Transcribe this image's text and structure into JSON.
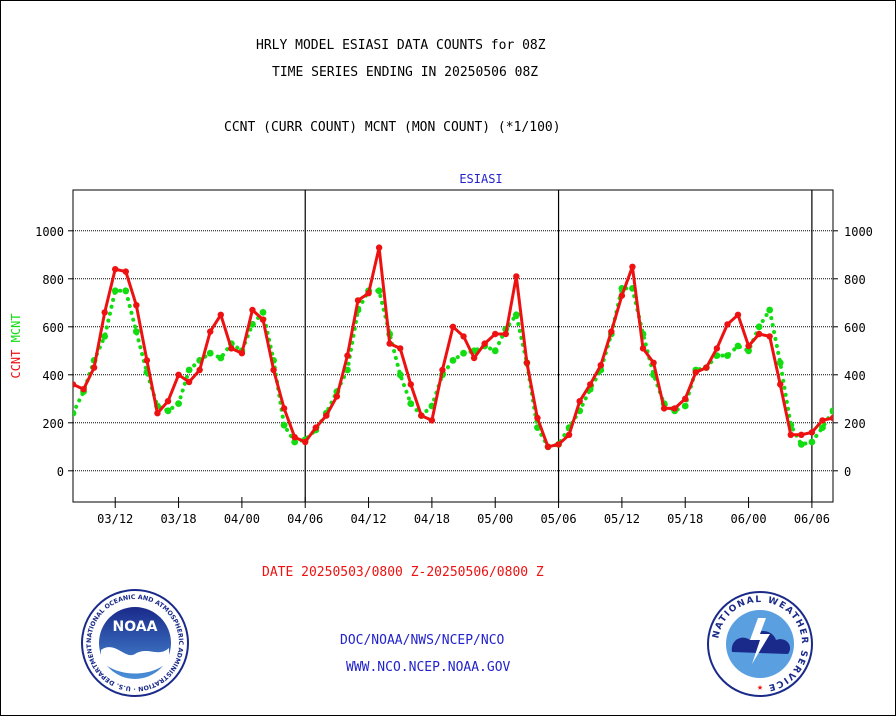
{
  "header": {
    "title_line1": "HRLY MODEL ESIASI DATA COUNTS for 08Z",
    "title_line2": "TIME SERIES ENDING IN 20250506 08Z",
    "subtitle": "CCNT (CURR COUNT) MCNT (MON COUNT) (*1/100)"
  },
  "footer": {
    "date_range": "DATE 20250503/0800 Z-20250506/0800 Z",
    "org_line": "DOC/NOAA/NWS/NCEP/NCO",
    "url_line": "WWW.NCO.NCEP.NOAA.GOV"
  },
  "logos": {
    "noaa_text": "NOAA",
    "noaa_ring": "NATIONAL OCEANIC AND ATMOSPHERIC ADMINISTRATION · U.S. DEPARTMENT OF COMMERCE",
    "nws_ring": "NATIONAL WEATHER SERVICE"
  },
  "colors": {
    "ccnt": "#ee1111",
    "mcnt": "#11dd11",
    "plot_title": "#2222cc",
    "footer_blue": "#2222cc",
    "footer_red": "#ee1111"
  },
  "chart_data": {
    "type": "line",
    "title": "ESIASI",
    "ylabel_ccnt": "CCNT",
    "ylabel_mcnt": "MCNT",
    "ylim": [
      -130,
      1170
    ],
    "yticks": [
      0,
      200,
      400,
      600,
      800,
      1000
    ],
    "x_start_hour": 8,
    "x_end_hour": 80,
    "x_ticks": [
      {
        "hour": 12,
        "label": "03/12"
      },
      {
        "hour": 18,
        "label": "03/18"
      },
      {
        "hour": 24,
        "label": "04/00"
      },
      {
        "hour": 30,
        "label": "04/06"
      },
      {
        "hour": 36,
        "label": "04/12"
      },
      {
        "hour": 42,
        "label": "04/18"
      },
      {
        "hour": 48,
        "label": "05/00"
      },
      {
        "hour": 54,
        "label": "05/06"
      },
      {
        "hour": 60,
        "label": "05/12"
      },
      {
        "hour": 66,
        "label": "05/18"
      },
      {
        "hour": 72,
        "label": "06/00"
      },
      {
        "hour": 78,
        "label": "06/06"
      }
    ],
    "day_boundaries": [
      30,
      54,
      78
    ],
    "grid": true,
    "series": [
      {
        "name": "CCNT",
        "values": [
          360,
          340,
          430,
          660,
          840,
          830,
          690,
          460,
          240,
          290,
          400,
          370,
          420,
          580,
          650,
          510,
          490,
          670,
          630,
          420,
          260,
          140,
          120,
          180,
          230,
          310,
          480,
          710,
          740,
          930,
          530,
          510,
          360,
          230,
          210,
          420,
          600,
          560,
          470,
          530,
          570,
          570,
          810,
          450,
          220,
          100,
          110,
          150,
          290,
          360,
          440,
          580,
          730,
          850,
          510,
          450,
          260,
          260,
          300,
          410,
          430,
          510,
          610,
          650,
          520,
          570,
          560,
          360,
          150,
          150,
          160,
          210,
          220
        ],
        "style": "solid-red-dots"
      },
      {
        "name": "MCNT",
        "values": [
          240,
          330,
          460,
          560,
          750,
          750,
          580,
          410,
          270,
          250,
          280,
          420,
          460,
          490,
          470,
          530,
          500,
          610,
          660,
          460,
          190,
          120,
          130,
          170,
          240,
          330,
          420,
          670,
          750,
          750,
          570,
          400,
          280,
          230,
          270,
          400,
          460,
          490,
          500,
          520,
          500,
          590,
          650,
          450,
          180,
          100,
          110,
          180,
          250,
          340,
          420,
          570,
          760,
          760,
          570,
          400,
          280,
          250,
          270,
          420,
          430,
          480,
          480,
          520,
          500,
          600,
          670,
          450,
          190,
          110,
          120,
          180,
          250
        ],
        "style": "dotted-green"
      }
    ]
  }
}
